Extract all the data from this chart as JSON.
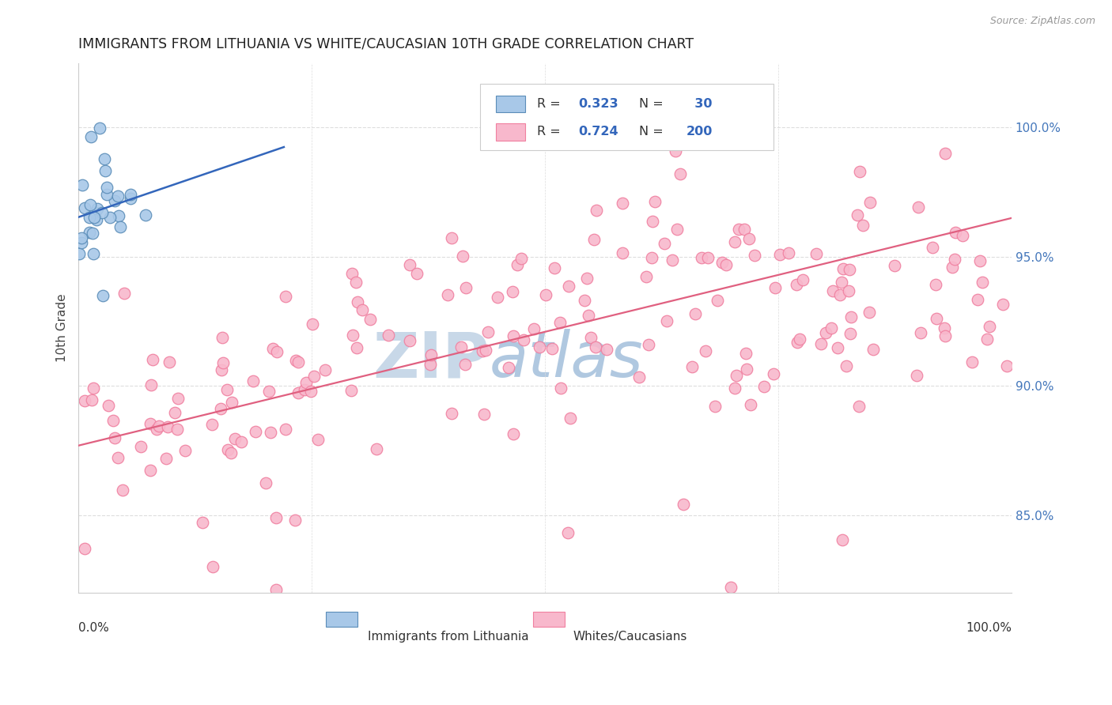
{
  "title": "IMMIGRANTS FROM LITHUANIA VS WHITE/CAUCASIAN 10TH GRADE CORRELATION CHART",
  "source": "Source: ZipAtlas.com",
  "ylabel": "10th Grade",
  "legend_label1": "Immigrants from Lithuania",
  "legend_label2": "Whites/Caucasians",
  "R1": "0.323",
  "N1": "30",
  "R2": "0.724",
  "N2": "200",
  "blue_edge": "#5B8DB8",
  "blue_fill": "#A8C8E8",
  "pink_edge": "#F080A0",
  "pink_fill": "#F8B8CC",
  "trend_blue": "#3366BB",
  "trend_pink": "#E06080",
  "title_color": "#222222",
  "source_color": "#999999",
  "axis_label_color": "#444444",
  "right_tick_color": "#4477BB",
  "watermark_zip_color": "#C8D8E8",
  "watermark_atlas_color": "#B0C8E0",
  "grid_color": "#DDDDDD",
  "legend_text_color": "#333333",
  "legend_value_color": "#3366BB",
  "ylim_low": 0.82,
  "ylim_high": 1.025,
  "blue_seed": 12,
  "pink_seed": 99
}
